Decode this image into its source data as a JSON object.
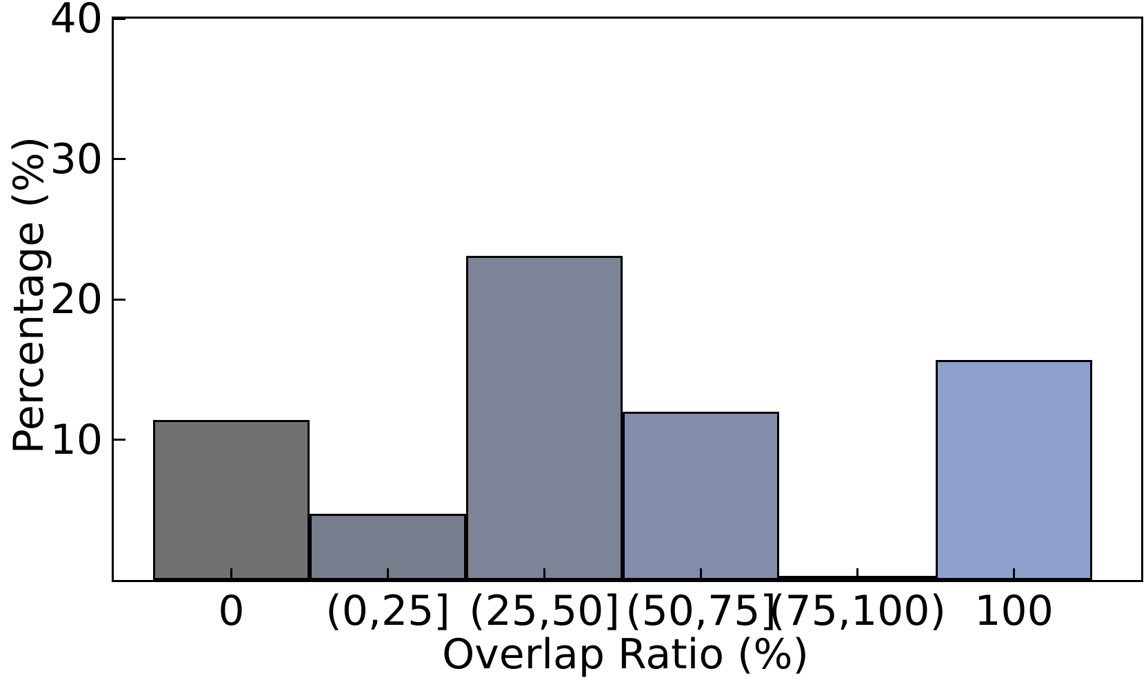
{
  "chart_data": {
    "type": "bar",
    "variant": "histogram",
    "title": "",
    "xlabel": "Overlap Ratio (%)",
    "ylabel": "Percentage (%)",
    "categories": [
      "0",
      "(0,25]",
      "(25,50]",
      "(50,75]",
      "(75,100)",
      "100"
    ],
    "values": [
      11.4,
      4.7,
      23.1,
      12.0,
      0.3,
      15.7
    ],
    "bar_colors": [
      "#717171",
      "#767d8c",
      "#7e8498",
      "#838dab",
      "#8996bd",
      "#8fa0cd"
    ],
    "bar_edge_color": "#000000",
    "ylim": [
      0,
      40
    ],
    "yticks": [
      10,
      20,
      30,
      40
    ],
    "xlim_padding_note": "bars adjacent, no gaps; outer margins inside axes",
    "grid": false,
    "legend": null,
    "tick_direction": "in",
    "background": "#ffffff"
  }
}
